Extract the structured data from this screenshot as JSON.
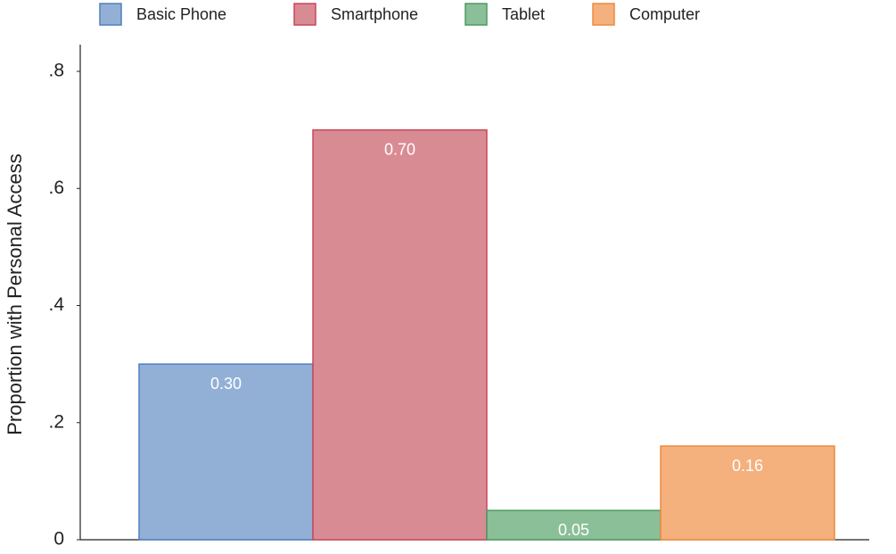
{
  "chart_data": {
    "type": "bar",
    "ylabel": "Proportion with Personal Access",
    "series": [
      {
        "name": "Basic Phone",
        "color": "#92b0d6",
        "edge_color": "#4f7fbf",
        "values": [
          0.3
        ],
        "value_labels": [
          "0.30"
        ]
      },
      {
        "name": "Smartphone",
        "color": "#d98b94",
        "edge_color": "#c8485a",
        "values": [
          0.7
        ],
        "value_labels": [
          "0.70"
        ]
      },
      {
        "name": "Tablet",
        "color": "#8bbf98",
        "edge_color": "#4c9a62",
        "values": [
          0.05
        ],
        "value_labels": [
          "0.05"
        ]
      },
      {
        "name": "Computer",
        "color": "#f4b07d",
        "edge_color": "#ee8a3c",
        "values": [
          0.16
        ],
        "value_labels": [
          "0.16"
        ]
      }
    ],
    "ylim": [
      0,
      0.8
    ],
    "yticks": [
      0,
      {
        "value": 0.2,
        "label": ".2"
      },
      {
        "value": 0.4,
        "label": ".4"
      },
      {
        "value": 0.6,
        "label": ".6"
      },
      {
        "value": 0.8,
        "label": ".8"
      }
    ],
    "legend": "top"
  }
}
